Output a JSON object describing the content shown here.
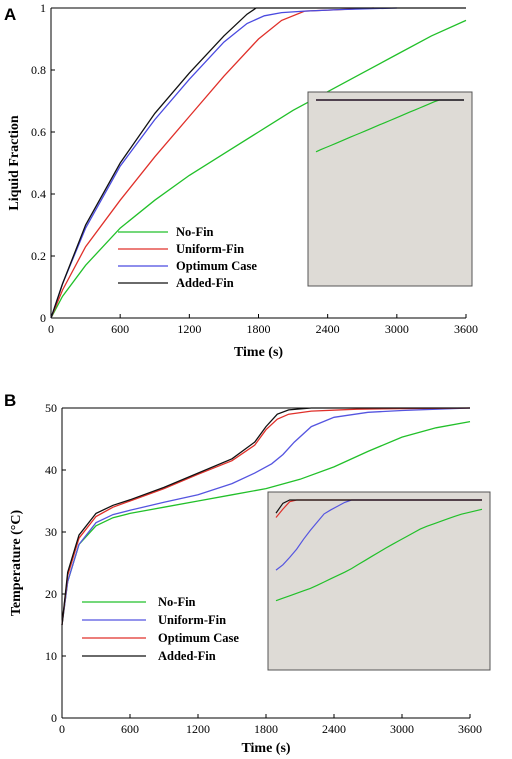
{
  "chart_data": [
    {
      "panel": "A",
      "type": "line",
      "title": "",
      "xlabel": "Time (s)",
      "ylabel": "Liquid Fraction",
      "xlim": [
        0,
        3600
      ],
      "ylim": [
        0,
        1
      ],
      "xticks": [
        0,
        600,
        1200,
        1800,
        2400,
        3000,
        3600
      ],
      "yticks": [
        0,
        0.2,
        0.4,
        0.6,
        0.8,
        1
      ],
      "ytick_labels": [
        "0",
        "0.2",
        "0.4",
        "0.6",
        "0.8",
        "1"
      ],
      "legend_position": "center-left",
      "series": [
        {
          "name": "No-Fin",
          "color": "#22c02a",
          "x": [
            0,
            100,
            300,
            600,
            900,
            1200,
            1500,
            1800,
            2100,
            2400,
            2700,
            3000,
            3300,
            3600
          ],
          "y": [
            0,
            0.07,
            0.17,
            0.29,
            0.38,
            0.46,
            0.53,
            0.6,
            0.67,
            0.73,
            0.79,
            0.85,
            0.91,
            0.96
          ]
        },
        {
          "name": "Uniform-Fin",
          "color": "#e0302a",
          "x": [
            0,
            100,
            300,
            600,
            900,
            1200,
            1500,
            1800,
            2000,
            2200,
            2500,
            2800
          ],
          "y": [
            0,
            0.09,
            0.23,
            0.38,
            0.52,
            0.65,
            0.78,
            0.9,
            0.96,
            0.99,
            0.995,
            1.0
          ]
        },
        {
          "name": "Optimum Case",
          "color": "#4a4ae0",
          "x": [
            0,
            100,
            300,
            600,
            900,
            1200,
            1500,
            1700,
            1850,
            2000,
            2200,
            2500,
            3000
          ],
          "y": [
            0,
            0.11,
            0.29,
            0.49,
            0.64,
            0.77,
            0.89,
            0.95,
            0.975,
            0.985,
            0.99,
            0.995,
            1.0
          ]
        },
        {
          "name": "Added-Fin",
          "color": "#111111",
          "x": [
            0,
            100,
            300,
            600,
            900,
            1200,
            1500,
            1700,
            1780,
            3600
          ],
          "y": [
            0,
            0.11,
            0.3,
            0.5,
            0.66,
            0.79,
            0.91,
            0.98,
            1.0,
            1.0
          ]
        }
      ]
    },
    {
      "panel": "B",
      "type": "line",
      "title": "",
      "xlabel": "Time (s)",
      "ylabel": "Temperature (°C)",
      "xlim": [
        0,
        3600
      ],
      "ylim": [
        0,
        50
      ],
      "xticks": [
        0,
        600,
        1200,
        1800,
        2400,
        3000,
        3600
      ],
      "yticks": [
        0,
        10,
        20,
        30,
        40,
        50
      ],
      "ytick_labels": [
        "0",
        "10",
        "20",
        "30",
        "40",
        "50"
      ],
      "legend_position": "bottom-left",
      "series": [
        {
          "name": "No-Fin",
          "color": "#22c02a",
          "x": [
            0,
            50,
            150,
            300,
            450,
            600,
            900,
            1200,
            1500,
            1800,
            2100,
            2400,
            2700,
            3000,
            3300,
            3600
          ],
          "y": [
            15,
            22,
            28,
            31,
            32.3,
            33,
            34,
            35,
            36,
            37,
            38.5,
            40.5,
            43,
            45.3,
            46.8,
            47.8
          ]
        },
        {
          "name": "Uniform-Fin",
          "color": "#5555e0",
          "x": [
            0,
            50,
            150,
            300,
            450,
            600,
            900,
            1200,
            1500,
            1700,
            1850,
            1950,
            2050,
            2200,
            2400,
            2700,
            3000,
            3300,
            3600
          ],
          "y": [
            15,
            22,
            28,
            31.5,
            32.8,
            33.5,
            34.8,
            36,
            37.8,
            39.5,
            41,
            42.5,
            44.5,
            47,
            48.5,
            49.3,
            49.6,
            49.8,
            50
          ]
        },
        {
          "name": "Optimum Case",
          "color": "#e0302a",
          "x": [
            0,
            50,
            150,
            300,
            450,
            600,
            900,
            1200,
            1500,
            1700,
            1800,
            1900,
            2000,
            2200,
            2600,
            3000,
            3600
          ],
          "y": [
            15,
            23,
            29,
            32.5,
            34,
            35,
            37,
            39.3,
            41.5,
            44,
            46.5,
            48.2,
            49,
            49.5,
            49.8,
            49.9,
            50
          ]
        },
        {
          "name": "Added-Fin",
          "color": "#111111",
          "x": [
            0,
            50,
            150,
            300,
            450,
            600,
            900,
            1200,
            1500,
            1700,
            1800,
            1900,
            2000,
            2200,
            2600,
            3000,
            3600
          ],
          "y": [
            15,
            23.5,
            29.5,
            33,
            34.3,
            35.2,
            37.2,
            39.5,
            41.8,
            44.5,
            47,
            49,
            49.7,
            50,
            50,
            50,
            50
          ]
        }
      ]
    }
  ]
}
